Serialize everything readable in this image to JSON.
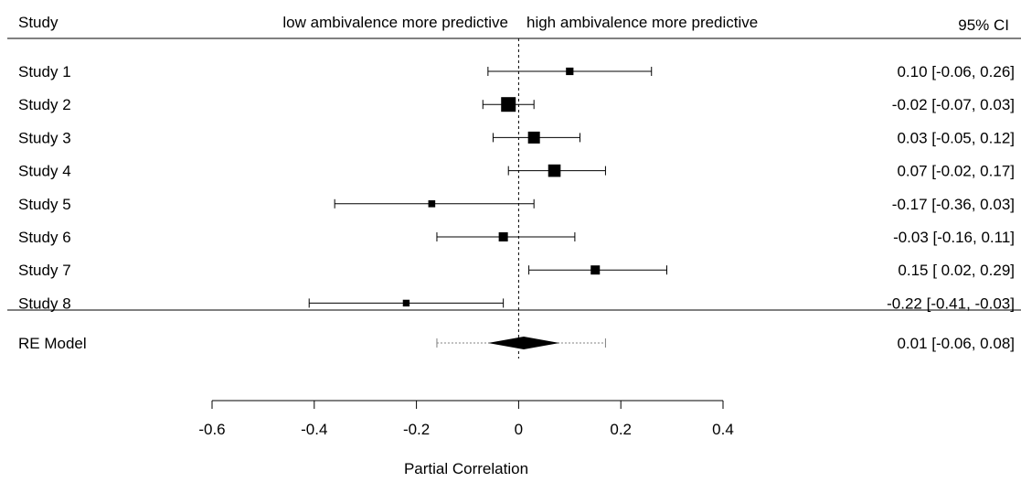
{
  "header": {
    "study_label": "Study",
    "left_label": "low ambivalence more predictive",
    "right_label": "high ambivalence more predictive",
    "ci_label": "95% CI"
  },
  "chart_data": {
    "type": "forest",
    "xlabel": "Partial Correlation",
    "xlim": [
      -0.6,
      0.4
    ],
    "x_ticks": [
      -0.6,
      -0.4,
      -0.2,
      0,
      0.2,
      0.4
    ],
    "x_tick_labels": [
      "-0.6",
      "-0.4",
      "-0.2",
      "0",
      "0.2",
      "0.4"
    ],
    "reference_line": 0,
    "studies": [
      {
        "name": "Study 1",
        "estimate": 0.1,
        "lower": -0.06,
        "upper": 0.26,
        "ci_text": "0.10 [-0.06,  0.26]",
        "weight": 0.35
      },
      {
        "name": "Study 2",
        "estimate": -0.02,
        "lower": -0.07,
        "upper": 0.03,
        "ci_text": "-0.02 [-0.07,  0.03]",
        "weight": 1.0
      },
      {
        "name": "Study 3",
        "estimate": 0.03,
        "lower": -0.05,
        "upper": 0.12,
        "ci_text": "0.03 [-0.05,  0.12]",
        "weight": 0.75
      },
      {
        "name": "Study 4",
        "estimate": 0.07,
        "lower": -0.02,
        "upper": 0.17,
        "ci_text": "0.07 [-0.02,  0.17]",
        "weight": 0.8
      },
      {
        "name": "Study 5",
        "estimate": -0.17,
        "lower": -0.36,
        "upper": 0.03,
        "ci_text": "-0.17 [-0.36,  0.03]",
        "weight": 0.3
      },
      {
        "name": "Study 6",
        "estimate": -0.03,
        "lower": -0.16,
        "upper": 0.11,
        "ci_text": "-0.03 [-0.16,  0.11]",
        "weight": 0.5
      },
      {
        "name": "Study 7",
        "estimate": 0.15,
        "lower": 0.02,
        "upper": 0.29,
        "ci_text": "0.15 [ 0.02,  0.29]",
        "weight": 0.5
      },
      {
        "name": "Study 8",
        "estimate": -0.22,
        "lower": -0.41,
        "upper": -0.03,
        "ci_text": "-0.22 [-0.41, -0.03]",
        "weight": 0.28
      }
    ],
    "summary": {
      "name": "RE Model",
      "estimate": 0.01,
      "lower": -0.06,
      "upper": 0.08,
      "pi_lower": -0.16,
      "pi_upper": 0.17,
      "ci_text": "0.01 [-0.06,  0.08]"
    },
    "colors": {
      "ink": "#000000",
      "pi_line": "#808080"
    }
  }
}
